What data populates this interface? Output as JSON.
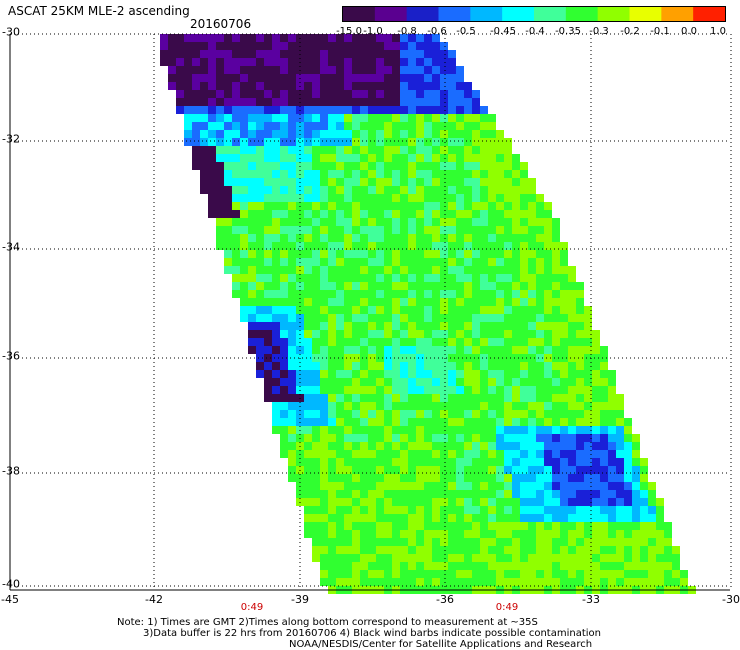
{
  "header": {
    "title": "ASCAT 25KM MLE-2 ascending",
    "date": "20160706"
  },
  "colorbar": {
    "labels": [
      "-15.0",
      "-1.0",
      "-0.8",
      "-0.6",
      "-0.5",
      "-0.45",
      "-0.4",
      "-0.35",
      "-0.3",
      "-0.2",
      "-0.1",
      "0.0",
      "1.0"
    ],
    "colors": [
      "#3a0a4a",
      "#5a0090",
      "#1a20c8",
      "#1a6cff",
      "#00b8ff",
      "#00ffff",
      "#40ff9a",
      "#30ff30",
      "#90ff00",
      "#e8ff00",
      "#ffa000",
      "#ff2000"
    ]
  },
  "axes": {
    "lat_labels": [
      "-30",
      "-32",
      "-34",
      "-36",
      "-38",
      "-40"
    ],
    "lon_labels": [
      "-45",
      "-42",
      "-39",
      "-36",
      "-33",
      "-30"
    ],
    "time_labels": [
      "0:49",
      "0:49"
    ]
  },
  "notes": {
    "line1": "Note: 1) Times are GMT 2)Times along bottom correspond to measurement at ~35S",
    "line2": "3)Data buffer is 22 hrs from 20160706 4) Black wind barbs indicate possible contamination",
    "line3": "NOAA/NESDIS/Center for Satellite Applications and Research"
  }
}
